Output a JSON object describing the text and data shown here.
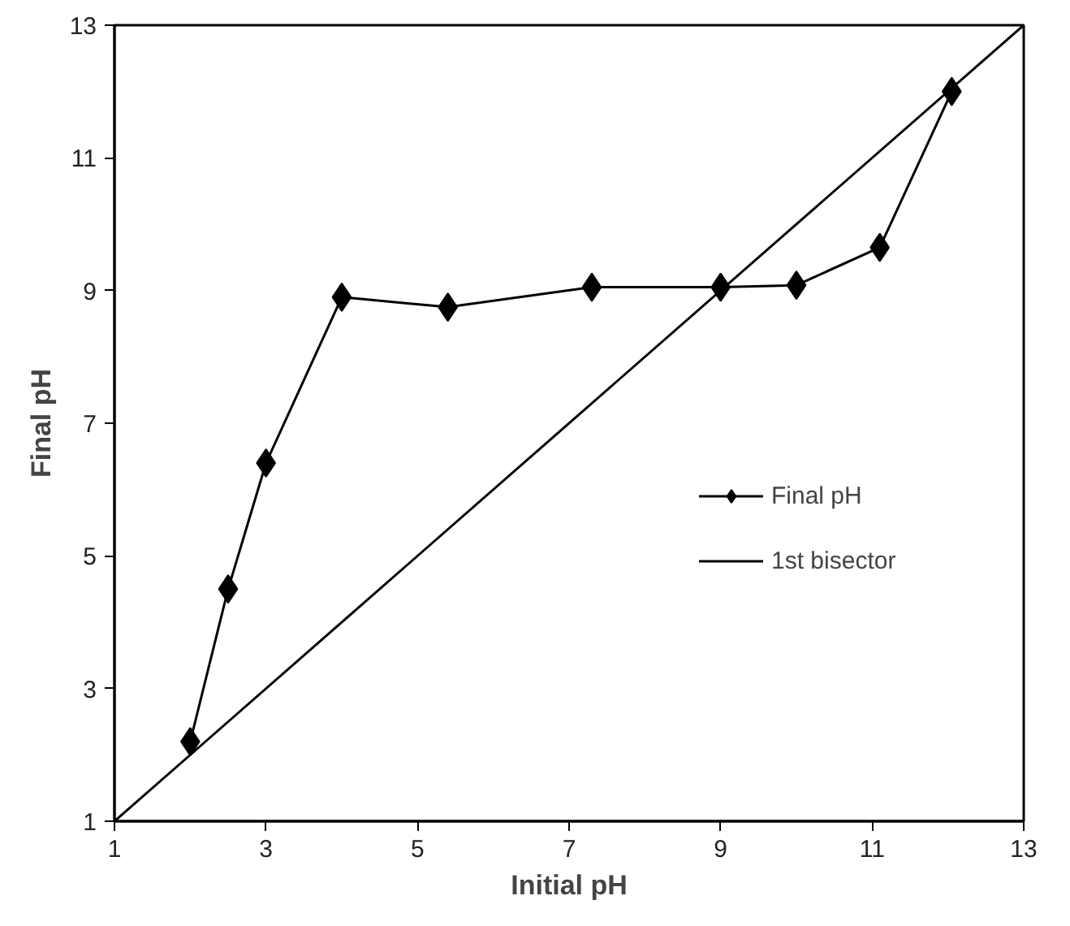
{
  "chart_data": {
    "type": "line",
    "xlabel": "Initial pH",
    "ylabel": "Final pH",
    "xlim": [
      1,
      13
    ],
    "ylim": [
      1,
      13
    ],
    "xticks": [
      1,
      3,
      5,
      7,
      9,
      11,
      13
    ],
    "yticks": [
      1,
      3,
      5,
      7,
      9,
      11,
      13
    ],
    "grid": false,
    "legend": "right",
    "series": [
      {
        "name": "Final pH",
        "color": "#000000",
        "marker": "diamond",
        "x": [
          2.0,
          2.5,
          3.0,
          4.0,
          5.4,
          7.3,
          9.0,
          10.0,
          11.1,
          12.05
        ],
        "values": [
          2.2,
          4.5,
          6.4,
          8.9,
          8.75,
          9.05,
          9.05,
          9.08,
          9.65,
          12.0
        ]
      },
      {
        "name": "1st bisector",
        "color": "#000000",
        "marker": "none",
        "x": [
          1,
          13
        ],
        "values": [
          1,
          13
        ]
      }
    ]
  }
}
